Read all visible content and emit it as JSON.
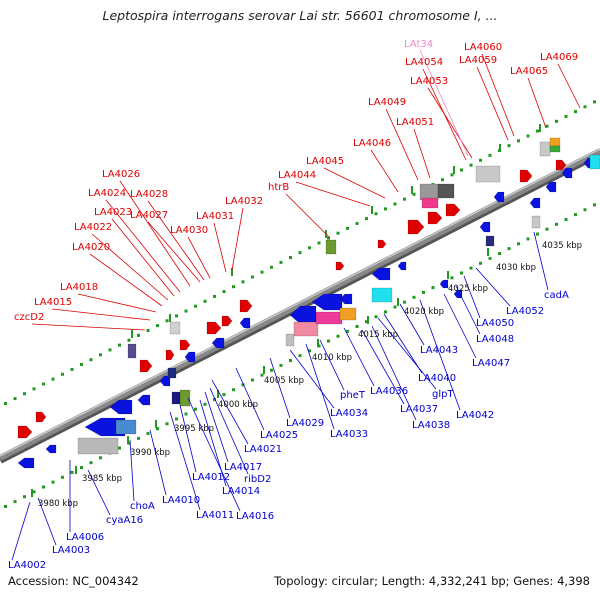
{
  "title": "Leptospira interrogans serovar Lai str. 56601 chromosome I, ...",
  "footer": {
    "accession": "Accession: NC_004342",
    "topology": "Topology: circular; Length: 4,332,241 bp; Genes: 4,398"
  },
  "colors": {
    "forward_label": "#dd0000",
    "reverse_label": "#0000cc",
    "rna_label": "#ee88cc",
    "backbone": "#888888",
    "ruler_dots": "#229922"
  },
  "scale_labels": [
    "3980 kbp",
    "3985 kbp",
    "3990 kbp",
    "3995 kbp",
    "4000 kbp",
    "4005 kbp",
    "4010 kbp",
    "4015 kbp",
    "4020 kbp",
    "4025 kbp",
    "4030 kbp",
    "4035 kbp"
  ],
  "forward_genes": [
    "czcD2",
    "LA4015",
    "LA4018",
    "LA4020",
    "LA4022",
    "LA4023",
    "LA4024",
    "LA4026",
    "LA4027",
    "LA4028",
    "LA4030",
    "LA4031",
    "LA4032",
    "htrB",
    "LA4044",
    "LA4045",
    "LA4046",
    "LA4049",
    "LA4051",
    "LA4053",
    "LA4054",
    "LA4059",
    "LA4060",
    "LA4065",
    "LA4069"
  ],
  "rna_genes": [
    "LAt34"
  ],
  "reverse_genes": [
    "LA4002",
    "LA4003",
    "cyaA16",
    "LA4006",
    "choA",
    "LA4010",
    "LA4011",
    "LA4012",
    "LA4014",
    "LA4016",
    "LA4017",
    "ribD2",
    "LA4021",
    "LA4025",
    "LA4029",
    "LA4034",
    "LA4033",
    "pheT",
    "LA4036",
    "LA4037",
    "LA4038",
    "glpT",
    "LA4040",
    "LA4043",
    "LA4042",
    "LA4047",
    "LA4048",
    "LA4050",
    "LA4052",
    "cadA"
  ]
}
